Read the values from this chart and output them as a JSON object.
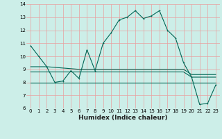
{
  "xlabel": "Humidex (Indice chaleur)",
  "bg_color": "#cceee8",
  "grid_color": "#e8a0a0",
  "line_color": "#006655",
  "ylim": [
    6,
    14
  ],
  "xlim": [
    -0.5,
    23.5
  ],
  "yticks": [
    6,
    7,
    8,
    9,
    10,
    11,
    12,
    13,
    14
  ],
  "xticks": [
    0,
    1,
    2,
    3,
    4,
    5,
    6,
    7,
    8,
    9,
    10,
    11,
    12,
    13,
    14,
    15,
    16,
    17,
    18,
    19,
    20,
    21,
    22,
    23
  ],
  "series": [
    [
      10.8,
      10.0,
      9.2,
      8.0,
      8.1,
      8.9,
      8.3,
      10.5,
      8.9,
      11.0,
      11.8,
      12.8,
      13.0,
      13.5,
      12.9,
      13.1,
      13.5,
      12.0,
      11.4,
      9.5,
      8.4,
      6.3,
      6.4,
      7.8
    ],
    [
      9.2,
      9.2,
      9.2,
      9.15,
      9.1,
      9.05,
      9.0,
      9.0,
      9.0,
      9.0,
      9.0,
      9.0,
      9.0,
      9.0,
      9.0,
      9.0,
      9.0,
      9.0,
      9.0,
      9.0,
      8.6,
      8.6,
      8.6,
      8.6
    ],
    [
      8.8,
      8.8,
      8.8,
      8.8,
      8.8,
      8.8,
      8.8,
      8.8,
      8.8,
      8.8,
      8.8,
      8.8,
      8.8,
      8.8,
      8.8,
      8.8,
      8.8,
      8.8,
      8.8,
      8.8,
      8.4,
      8.4,
      8.4,
      8.4
    ],
    [
      8.0,
      8.0,
      8.0,
      8.0,
      8.0,
      8.0,
      8.0,
      8.0,
      8.0,
      8.0,
      8.0,
      8.0,
      8.0,
      8.0,
      8.0,
      8.0,
      8.0,
      8.0,
      8.0,
      8.0,
      8.0,
      8.0,
      8.0,
      8.0
    ]
  ],
  "marker_series": [
    0
  ],
  "marker_size": 2.0,
  "marker_style": "+",
  "line_width": 0.8,
  "xlabel_fontsize": 6.5,
  "tick_fontsize": 5.0
}
